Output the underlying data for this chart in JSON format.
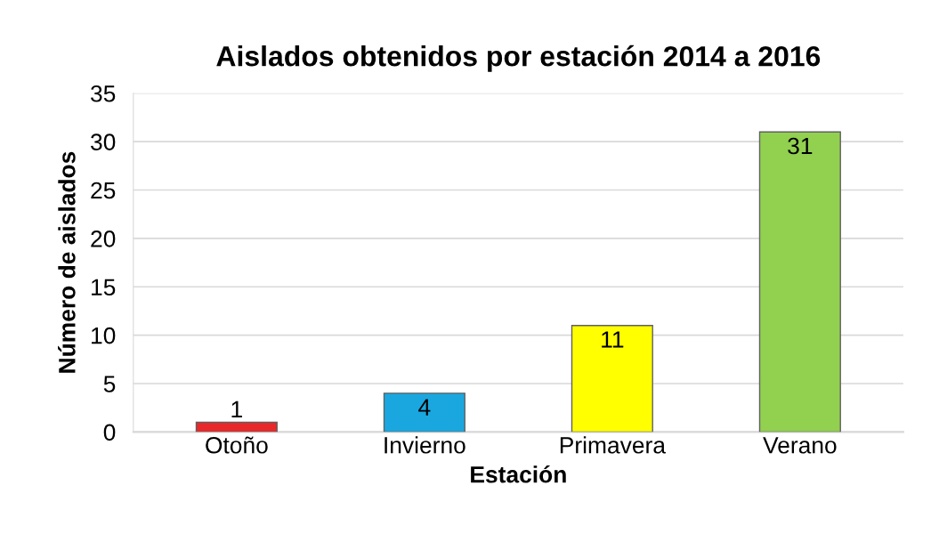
{
  "chart_data": {
    "type": "bar",
    "title": "Aislados obtenidos por estación 2014 a 2016",
    "xlabel": "Estación",
    "ylabel": "Número de aislados",
    "categories": [
      "Otoño",
      "Invierno",
      "Primavera",
      "Verano"
    ],
    "values": [
      1,
      4,
      11,
      31
    ],
    "colors": [
      "#e8282a",
      "#1aa7e0",
      "#ffff00",
      "#92d050"
    ],
    "ylim": [
      0,
      35
    ],
    "yticks": [
      0,
      5,
      10,
      15,
      20,
      25,
      30,
      35
    ],
    "grid": "y",
    "data_labels": true,
    "legend": false
  }
}
